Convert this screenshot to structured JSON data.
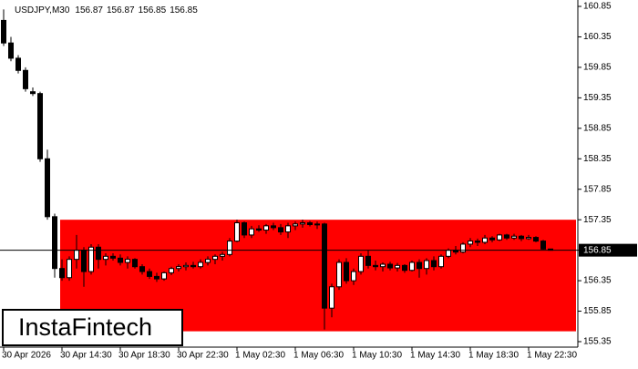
{
  "chart_data": {
    "type": "candlestick",
    "symbol": "USDJPY,M30",
    "categories": [
      "30 Apr 2026",
      null,
      null,
      null,
      null,
      null,
      null,
      null,
      "30 Apr 14:30",
      null,
      null,
      null,
      null,
      null,
      null,
      null,
      "30 Apr 18:30",
      null,
      null,
      null,
      null,
      null,
      null,
      null,
      "30 Apr 22:30",
      null,
      null,
      null,
      null,
      null,
      null,
      null,
      "1 May 02:30",
      null,
      null,
      null,
      null,
      null,
      null,
      null,
      "1 May 06:30",
      null,
      null,
      null,
      null,
      null,
      null,
      null,
      "1 May 10:30",
      null,
      null,
      null,
      null,
      null,
      null,
      null,
      "1 May 14:30",
      null,
      null,
      null,
      null,
      null,
      null,
      null,
      "1 May 18:30",
      null,
      null,
      null,
      null,
      null,
      null,
      null,
      "1 May 22:30",
      null,
      null,
      null
    ],
    "open": [
      160.62,
      160.25,
      160.0,
      159.8,
      159.45,
      159.42,
      158.35,
      157.4,
      156.55,
      156.4,
      156.7,
      156.85,
      156.5,
      156.9,
      156.7,
      156.75,
      156.72,
      156.65,
      156.7,
      156.58,
      156.5,
      156.42,
      156.38,
      156.48,
      156.55,
      156.58,
      156.6,
      156.58,
      156.65,
      156.7,
      156.75,
      156.78,
      157.0,
      157.3,
      157.1,
      157.2,
      157.18,
      157.25,
      157.22,
      157.15,
      157.25,
      157.28,
      157.3,
      157.27,
      157.28,
      155.9,
      156.25,
      156.65,
      156.35,
      156.5,
      156.75,
      156.6,
      156.58,
      156.62,
      156.56,
      156.6,
      156.52,
      156.65,
      156.55,
      156.68,
      156.58,
      156.75,
      156.85,
      156.82,
      156.95,
      157.0,
      156.98,
      157.05,
      157.02,
      157.1,
      157.05,
      157.08,
      157.04,
      157.06,
      157.0,
      156.87
    ],
    "high": [
      160.8,
      160.35,
      160.05,
      159.85,
      159.52,
      159.45,
      158.5,
      157.45,
      156.7,
      156.75,
      157.1,
      156.9,
      156.95,
      156.95,
      156.8,
      156.8,
      156.78,
      156.75,
      156.72,
      156.62,
      156.55,
      156.48,
      156.5,
      156.58,
      156.62,
      156.65,
      156.66,
      156.7,
      156.75,
      156.78,
      156.82,
      157.05,
      157.35,
      157.32,
      157.25,
      157.26,
      157.28,
      157.3,
      157.28,
      157.3,
      157.32,
      157.35,
      157.33,
      157.32,
      157.3,
      156.3,
      156.7,
      156.72,
      156.55,
      156.8,
      156.85,
      156.68,
      156.65,
      156.66,
      156.64,
      156.62,
      156.68,
      156.7,
      156.72,
      156.75,
      156.78,
      156.88,
      156.92,
      156.98,
      157.05,
      157.04,
      157.1,
      157.08,
      157.12,
      157.12,
      157.12,
      157.1,
      157.1,
      157.08,
      157.02,
      156.87
    ],
    "low": [
      160.2,
      159.95,
      159.75,
      159.45,
      159.38,
      158.3,
      157.35,
      156.4,
      156.35,
      156.35,
      156.55,
      156.25,
      156.45,
      156.55,
      156.6,
      156.68,
      156.6,
      156.55,
      156.55,
      156.45,
      156.38,
      156.33,
      156.35,
      156.44,
      156.5,
      156.52,
      156.55,
      156.55,
      156.6,
      156.62,
      156.68,
      156.75,
      156.98,
      157.05,
      157.05,
      157.15,
      157.12,
      157.18,
      157.1,
      157.05,
      157.18,
      157.22,
      157.24,
      157.2,
      155.55,
      155.75,
      156.2,
      156.3,
      156.28,
      156.45,
      156.55,
      156.52,
      156.5,
      156.52,
      156.5,
      156.48,
      156.5,
      156.4,
      156.45,
      156.52,
      156.55,
      156.72,
      156.78,
      156.8,
      156.9,
      156.92,
      156.95,
      156.98,
      157.0,
      157.02,
      157.02,
      157.0,
      157.02,
      156.98,
      156.86,
      156.85
    ],
    "close": [
      160.25,
      160.0,
      159.8,
      159.5,
      159.42,
      158.35,
      157.4,
      156.55,
      156.4,
      156.7,
      156.85,
      156.5,
      156.9,
      156.7,
      156.75,
      156.72,
      156.65,
      156.7,
      156.58,
      156.5,
      156.42,
      156.38,
      156.48,
      156.55,
      156.58,
      156.6,
      156.58,
      156.65,
      156.7,
      156.75,
      156.78,
      157.0,
      157.3,
      157.1,
      157.2,
      157.18,
      157.25,
      157.22,
      157.15,
      157.25,
      157.28,
      157.3,
      157.27,
      157.28,
      155.9,
      156.25,
      156.65,
      156.35,
      156.5,
      156.75,
      156.6,
      156.58,
      156.62,
      156.56,
      156.6,
      156.52,
      156.65,
      156.55,
      156.68,
      156.58,
      156.75,
      156.85,
      156.82,
      156.95,
      157.0,
      156.98,
      157.05,
      157.02,
      157.1,
      157.05,
      157.08,
      157.04,
      157.06,
      157.0,
      156.87,
      156.85
    ],
    "zone": {
      "high": 157.35,
      "low": 155.52,
      "color": "#ff0000"
    },
    "ylim": [
      155.26,
      160.955
    ],
    "yticks": [
      160.85,
      160.35,
      159.85,
      159.35,
      158.85,
      158.35,
      157.85,
      157.35,
      156.85,
      156.35,
      155.85,
      155.35
    ],
    "watermark": "InstaFintech"
  }
}
